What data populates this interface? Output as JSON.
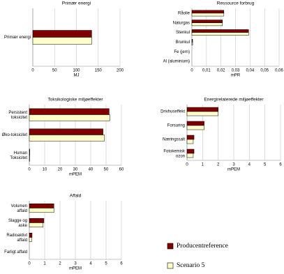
{
  "chart_data": [
    {
      "type": "hbar",
      "title": "Primær energi",
      "xlabel": "MJ",
      "categories": [
        "Primær energi"
      ],
      "series": [
        {
          "name": "Producentreference",
          "color": "#800000",
          "values": [
            135
          ]
        },
        {
          "name": "Scenario 5",
          "color": "#ffffcc",
          "values": [
            135
          ]
        }
      ],
      "xlim": [
        0,
        200
      ],
      "xticks": [
        0,
        50,
        100,
        150,
        200
      ],
      "grid": true
    },
    {
      "type": "hbar",
      "title": "Ressource forbrug",
      "xlabel": "mPR",
      "categories": [
        "Råolie",
        "Naturgas",
        "Stenkul",
        "Brunkul",
        "Fe (jern)",
        "Al (aluminium)"
      ],
      "series": [
        {
          "name": "Producentreference",
          "color": "#800000",
          "values": [
            0.022,
            0.021,
            0.039,
            0.0005,
            0,
            0
          ]
        },
        {
          "name": "Scenario 5",
          "color": "#ffffcc",
          "values": [
            0.022,
            0.021,
            0.039,
            0.0005,
            0,
            0
          ]
        }
      ],
      "xlim": [
        0,
        0.06
      ],
      "xticks": [
        0,
        {
          "value": 0.01,
          "label": "0,01"
        },
        {
          "value": 0.02,
          "label": "0,02"
        },
        {
          "value": 0.03,
          "label": "0,03"
        },
        {
          "value": 0.04,
          "label": "0,04"
        },
        {
          "value": 0.05,
          "label": "0,05"
        },
        {
          "value": 0.06,
          "label": "0,06"
        }
      ],
      "grid": true
    },
    {
      "type": "hbar",
      "title": "Toksikologiske miljøeffekter",
      "xlabel": "mPEM",
      "categories": [
        "Persistent\ntoksicitet",
        "Øko-toksicitet",
        "Human\nToksicitet"
      ],
      "series": [
        {
          "name": "Producentreference",
          "color": "#800000",
          "values": [
            52,
            48,
            0.3
          ]
        },
        {
          "name": "Scenario 5",
          "color": "#ffffcc",
          "values": [
            52.5,
            49,
            0.3
          ]
        }
      ],
      "xlim": [
        0,
        60
      ],
      "xticks": [
        0,
        10,
        20,
        30,
        40,
        50,
        60
      ],
      "grid": true
    },
    {
      "type": "hbar",
      "title": "Energirelaterede miljøeffekter",
      "xlabel": "mPEM",
      "categories": [
        "Drivhuseffekt",
        "Forsuring",
        "Næringssalt",
        "Fotokemisk\nozon"
      ],
      "series": [
        {
          "name": "Producentreference",
          "color": "#800000",
          "values": [
            2.0,
            1.1,
            0.45,
            0.45
          ]
        },
        {
          "name": "Scenario 5",
          "color": "#ffffcc",
          "values": [
            2.0,
            1.1,
            0.4,
            0.4
          ]
        }
      ],
      "xlim": [
        0,
        6
      ],
      "xticks": [
        0,
        1,
        2,
        3,
        4,
        5,
        6
      ],
      "grid": true
    },
    {
      "type": "hbar",
      "title": "Affald",
      "xlabel": "mPEM",
      "categories": [
        "Volumen\naffald",
        "Slagge og\naske",
        "Radioaktivt\naffald",
        "Farligt affald"
      ],
      "series": [
        {
          "name": "Producentreference",
          "color": "#800000",
          "values": [
            1.6,
            0.95,
            0.18,
            0
          ]
        },
        {
          "name": "Scenario 5",
          "color": "#ffffcc",
          "values": [
            1.6,
            0.9,
            0.15,
            0
          ]
        }
      ],
      "xlim": [
        0,
        6
      ],
      "xticks": [
        0,
        1,
        2,
        3,
        4,
        5,
        6
      ],
      "grid": true,
      "legend": "right"
    }
  ]
}
